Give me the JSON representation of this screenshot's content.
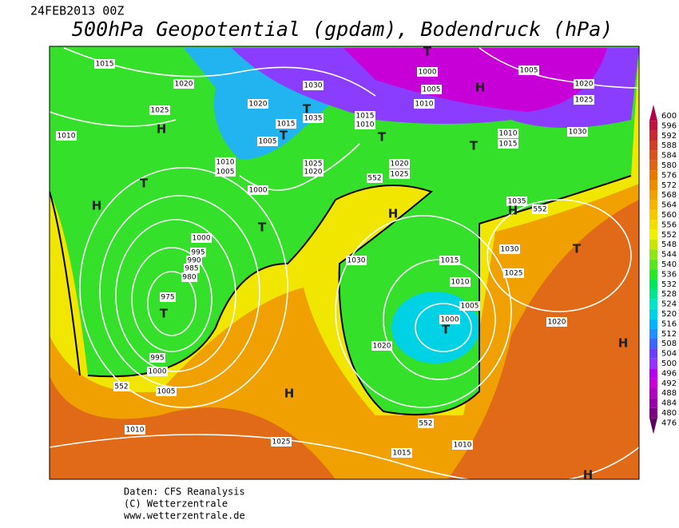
{
  "header": {
    "date": "24FEB2013 00Z",
    "title": "500hPa Geopotential (gpdam), Bodendruck (hPa)"
  },
  "colorbar": {
    "ticks": [
      600,
      596,
      592,
      588,
      584,
      580,
      576,
      572,
      568,
      564,
      560,
      556,
      552,
      548,
      544,
      540,
      536,
      532,
      528,
      524,
      520,
      516,
      512,
      508,
      504,
      500,
      496,
      492,
      488,
      484,
      480,
      476
    ],
    "colors": [
      "#b4004b",
      "#be143c",
      "#c82832",
      "#d23c28",
      "#dc501e",
      "#e16414",
      "#e67800",
      "#eb8c00",
      "#f0a000",
      "#f5b400",
      "#f5c800",
      "#f5dc00",
      "#f0f000",
      "#c8e600",
      "#8ce614",
      "#5ae61e",
      "#28e628",
      "#00e65a",
      "#00e68c",
      "#00e6c8",
      "#00d2e6",
      "#00b4ff",
      "#1e90ff",
      "#3c64ff",
      "#6a3cff",
      "#9632ff",
      "#b400f0",
      "#c800d8",
      "#b000c0",
      "#9a00a8",
      "#7a0080",
      "#5a0060"
    ]
  },
  "map": {
    "isobar_labels": [
      "1015",
      "1020",
      "1025",
      "1010",
      "1020",
      "1030",
      "1015",
      "1035",
      "1005",
      "1010",
      "1005",
      "1025",
      "1020",
      "1000",
      "1015",
      "1010",
      "1000",
      "1005",
      "1010",
      "1005",
      "1020",
      "1025",
      "1010",
      "1015",
      "1030",
      "1020",
      "1025",
      "1035",
      "1030",
      "1015",
      "1010",
      "1005",
      "1000",
      "1030",
      "1025",
      "1020",
      "1020",
      "1000",
      "995",
      "990",
      "985",
      "980",
      "975",
      "995",
      "1000",
      "1005",
      "1010",
      "1025",
      "1015",
      "1010",
      "552",
      "552",
      "552",
      "552"
    ],
    "pressure_systems": [
      "T",
      "H",
      "H",
      "T",
      "H",
      "T",
      "T",
      "T",
      "T",
      "T",
      "H",
      "H",
      "T",
      "T",
      "T",
      "H",
      "H",
      "H"
    ]
  },
  "footer": {
    "lines": [
      "Daten: CFS Reanalysis",
      "(C) Wetterzentrale",
      "www.wetterzentrale.de"
    ]
  }
}
